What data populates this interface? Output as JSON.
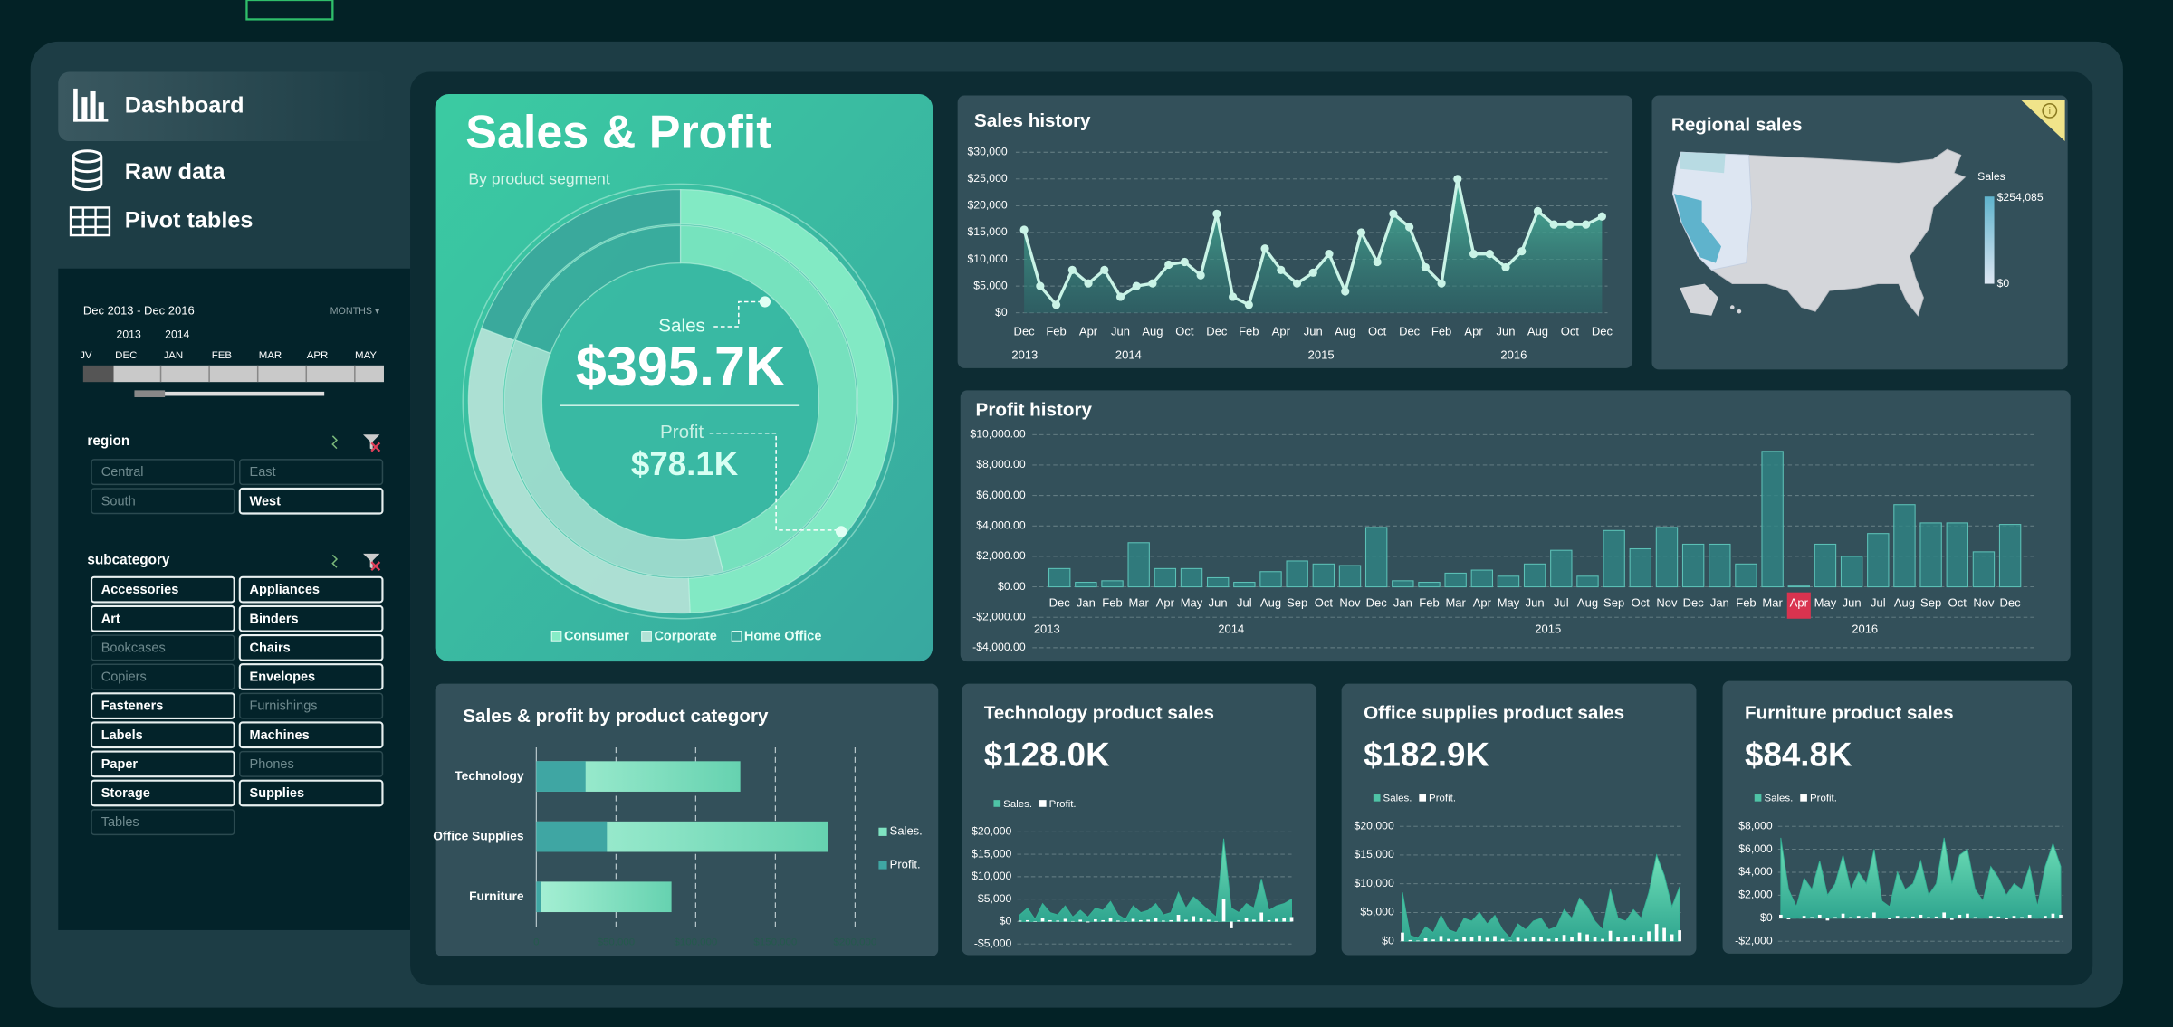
{
  "nav": [
    "Dashboard",
    "Raw data",
    "Pivot tables"
  ],
  "timeline": {
    "range": "Dec 2013 - Dec 2016",
    "unit": "MONTHS ▾",
    "years": [
      "2013",
      "2014"
    ],
    "months": [
      "JV",
      "DEC",
      "JAN",
      "FEB",
      "MAR",
      "APR",
      "MAY"
    ]
  },
  "region": {
    "title": "region",
    "items": [
      {
        "label": "Central",
        "selected": false
      },
      {
        "label": "East",
        "selected": false
      },
      {
        "label": "South",
        "selected": false
      },
      {
        "label": "West",
        "selected": true
      }
    ]
  },
  "subcategory": {
    "title": "subcategory",
    "items": [
      {
        "label": "Accessories",
        "selected": true
      },
      {
        "label": "Appliances",
        "selected": true
      },
      {
        "label": "Art",
        "selected": true
      },
      {
        "label": "Binders",
        "selected": true
      },
      {
        "label": "Bookcases",
        "selected": false
      },
      {
        "label": "Chairs",
        "selected": true
      },
      {
        "label": "Copiers",
        "selected": false
      },
      {
        "label": "Envelopes",
        "selected": true
      },
      {
        "label": "Fasteners",
        "selected": true
      },
      {
        "label": "Furnishings",
        "selected": false
      },
      {
        "label": "Labels",
        "selected": true
      },
      {
        "label": "Machines",
        "selected": true
      },
      {
        "label": "Paper",
        "selected": true
      },
      {
        "label": "Phones",
        "selected": false
      },
      {
        "label": "Storage",
        "selected": true
      },
      {
        "label": "Supplies",
        "selected": true
      },
      {
        "label": "Tables",
        "selected": false
      }
    ]
  },
  "sales_profit": {
    "title": "Sales & Profit",
    "subtitle": "By product segment",
    "chart": {
      "type": "donut",
      "categories": [
        "Consumer",
        "Corporate",
        "Home Office"
      ],
      "colors": [
        "#86ecc6",
        "#b2e2d6",
        "#3aa89c"
      ],
      "series": [
        {
          "name": "Sales",
          "total_label": "$395.7K",
          "values": [
            195000,
            124000,
            76700
          ]
        },
        {
          "name": "Profit",
          "total_label": "$78.1K",
          "values": [
            36000,
            27000,
            15100
          ]
        }
      ]
    }
  },
  "sales_history": {
    "type": "line",
    "title": "Sales history",
    "categories": [
      "Dec",
      null,
      "Feb",
      null,
      "Apr",
      null,
      "Jun",
      null,
      "Aug",
      null,
      "Oct",
      null,
      "Dec",
      null,
      "Feb",
      null,
      "Apr",
      null,
      "Jun",
      null,
      "Aug",
      null,
      "Oct",
      null,
      "Dec",
      null,
      "Feb",
      null,
      "Apr",
      null,
      "Jun",
      null,
      "Aug",
      null,
      "Oct",
      null,
      "Dec"
    ],
    "groups": [
      "2013",
      "2014",
      "2015",
      "2016"
    ],
    "series": [
      {
        "color": "#c9f3e6",
        "values": [
          15500,
          5000,
          1500,
          8000,
          5500,
          8000,
          3000,
          5000,
          5500,
          9000,
          9500,
          7000,
          18500,
          3000,
          1500,
          12000,
          8000,
          5500,
          7500,
          11000,
          4000,
          15000,
          9500,
          18500,
          16000,
          8500,
          5500,
          25000,
          11000,
          11000,
          8500,
          11500,
          19000,
          16500,
          16500,
          16500,
          18000
        ]
      }
    ],
    "ylim": [
      0,
      30000
    ],
    "yticks": [
      {
        "value": 0,
        "label": "$0"
      },
      {
        "value": 5000,
        "label": "$5,000"
      },
      {
        "value": 10000,
        "label": "$10,000"
      },
      {
        "value": 15000,
        "label": "$15,000"
      },
      {
        "value": 20000,
        "label": "$20,000"
      },
      {
        "value": 25000,
        "label": "$25,000"
      },
      {
        "value": 30000,
        "label": "$30,000"
      }
    ],
    "grid": true
  },
  "regional": {
    "title": "Regional sales",
    "legend_title": "Sales",
    "scale": [
      {
        "value": 254085,
        "label": "$254,085"
      },
      {
        "value": 0,
        "label": "$0"
      }
    ],
    "colors": [
      "#5fb3cc",
      "#dde6f2"
    ]
  },
  "profit_history": {
    "type": "bar",
    "title": "Profit history",
    "categories": [
      "Dec",
      "Jan",
      "Feb",
      "Mar",
      "Apr",
      "May",
      "Jun",
      "Jul",
      "Aug",
      "Sep",
      "Oct",
      "Nov",
      "Dec",
      "Jan",
      "Feb",
      "Mar",
      "Apr",
      "May",
      "Jun",
      "Jul",
      "Aug",
      "Sep",
      "Oct",
      "Nov",
      "Dec",
      "Jan",
      "Feb",
      "Mar",
      "Apr",
      "May",
      "Jun",
      "Jul",
      "Aug",
      "Sep",
      "Oct",
      "Nov",
      "Dec"
    ],
    "groups": [
      "2013",
      "2014",
      "2015",
      "2016"
    ],
    "values": [
      1200,
      300,
      400,
      2900,
      1200,
      1200,
      600,
      300,
      1000,
      1700,
      1500,
      1400,
      3900,
      400,
      300,
      900,
      1100,
      700,
      1500,
      2400,
      700,
      3700,
      2500,
      3900,
      2800,
      2800,
      1500,
      8900,
      50,
      2800,
      2000,
      3500,
      5400,
      4200,
      4200,
      2300,
      4100
    ],
    "color": "#2f8585",
    "highlight": 28,
    "highlight_color": "#d9334f",
    "ylim": [
      -4000,
      10000
    ],
    "yticks": [
      {
        "value": -4000,
        "label": "-$4,000.00"
      },
      {
        "value": -2000,
        "label": "-$2,000.00"
      },
      {
        "value": 0,
        "label": "$0.00"
      },
      {
        "value": 2000,
        "label": "$2,000.00"
      },
      {
        "value": 4000,
        "label": "$4,000.00"
      },
      {
        "value": 6000,
        "label": "$6,000.00"
      },
      {
        "value": 8000,
        "label": "$8,000.00"
      },
      {
        "value": 10000,
        "label": "$10,000.00"
      }
    ],
    "grid": true
  },
  "category_chart": {
    "type": "hbar",
    "title": "Sales & profit by product category",
    "categories": [
      "Technology",
      "Office Supplies",
      "Furniture"
    ],
    "series": [
      {
        "name": "Sales.",
        "color": "#7fe3c1",
        "values": [
          128000,
          182900,
          84800
        ]
      },
      {
        "name": "Profit.",
        "color": "#3fa6a3",
        "values": [
          30900,
          44300,
          2900
        ]
      }
    ],
    "xlim": [
      0,
      200000
    ],
    "xticks": [
      0,
      {
        "value": 50000,
        "label": "$50,000"
      },
      {
        "value": 100000,
        "label": "$100,000"
      },
      {
        "value": 150000,
        "label": "$150,000"
      },
      {
        "value": 200000,
        "label": "$200,000"
      }
    ],
    "grid": true
  },
  "product_sales": [
    {
      "type": "area_bar",
      "title": "Technology product sales",
      "total": "$128.0K",
      "series": [
        {
          "name": "Sales.",
          "color": "#34b496",
          "values": [
            1500,
            3000,
            500,
            4000,
            2000,
            1500,
            3500,
            1000,
            2500,
            1000,
            3000,
            2500,
            4500,
            1500,
            500,
            3500,
            2000,
            2500,
            4000,
            1500,
            2000,
            6500,
            3000,
            5500,
            4000,
            2500,
            1000,
            18500,
            3000,
            2000,
            4000,
            3000,
            9500,
            2500,
            3500,
            4000,
            5000
          ]
        },
        {
          "name": "Profit.",
          "color": "#ffffff",
          "values": [
            200,
            300,
            -100,
            800,
            300,
            200,
            600,
            100,
            400,
            -200,
            500,
            300,
            900,
            200,
            100,
            600,
            300,
            400,
            700,
            200,
            300,
            1500,
            400,
            1200,
            800,
            400,
            100,
            5000,
            -1500,
            300,
            900,
            400,
            2000,
            300,
            600,
            800,
            1000
          ]
        }
      ],
      "ylim": [
        -5000,
        20000
      ],
      "yticks": [
        {
          "value": -5000,
          "label": "-$5,000"
        },
        {
          "value": 0,
          "label": "$0"
        },
        {
          "value": 5000,
          "label": "$5,000"
        },
        {
          "value": 10000,
          "label": "$10,000"
        },
        {
          "value": 15000,
          "label": "$15,000"
        },
        {
          "value": 20000,
          "label": "$20,000"
        }
      ],
      "grid": true
    },
    {
      "type": "area_bar",
      "title": "Office supplies product sales",
      "total": "$182.9K",
      "series": [
        {
          "name": "Sales.",
          "color": "#34b496",
          "values": [
            8500,
            1000,
            500,
            2500,
            1500,
            4500,
            2000,
            1500,
            4000,
            3500,
            5000,
            3000,
            4500,
            2000,
            500,
            3000,
            2000,
            3500,
            4000,
            2000,
            2500,
            5500,
            4000,
            7500,
            6000,
            3500,
            2000,
            9000,
            4000,
            3500,
            5500,
            4000,
            8500,
            15000,
            11500,
            6000,
            9500
          ]
        },
        {
          "name": "Profit.",
          "color": "#ffffff",
          "values": [
            1500,
            200,
            100,
            500,
            300,
            900,
            400,
            300,
            800,
            700,
            1000,
            600,
            900,
            400,
            100,
            600,
            400,
            700,
            800,
            400,
            500,
            1100,
            800,
            1500,
            1200,
            700,
            400,
            1800,
            800,
            700,
            1100,
            800,
            1700,
            3000,
            2300,
            1200,
            1900
          ]
        }
      ],
      "ylim": [
        0,
        20000
      ],
      "yticks": [
        {
          "value": 0,
          "label": "$0"
        },
        {
          "value": 5000,
          "label": "$5,000"
        },
        {
          "value": 10000,
          "label": "$10,000"
        },
        {
          "value": 15000,
          "label": "$15,000"
        },
        {
          "value": 20000,
          "label": "$20,000"
        }
      ],
      "grid": true
    },
    {
      "type": "area_bar",
      "title": "Furniture product sales",
      "total": "$84.8K",
      "series": [
        {
          "name": "Sales.",
          "color": "#34b496",
          "values": [
            7000,
            2500,
            1000,
            3500,
            2500,
            5000,
            2000,
            3000,
            5500,
            2500,
            4000,
            3000,
            6000,
            1500,
            1000,
            4000,
            2500,
            3000,
            5000,
            2000,
            3000,
            7000,
            3000,
            5500,
            6000,
            2500,
            1500,
            4500,
            3500,
            2000,
            3000,
            2500,
            4500,
            1000,
            4500,
            6500,
            4500
          ]
        },
        {
          "name": "Profit.",
          "color": "#ffffff",
          "values": [
            300,
            -100,
            50,
            200,
            100,
            300,
            -200,
            100,
            400,
            100,
            200,
            100,
            500,
            50,
            -100,
            200,
            100,
            150,
            300,
            100,
            150,
            500,
            -150,
            300,
            400,
            100,
            50,
            200,
            150,
            -100,
            200,
            100,
            300,
            50,
            200,
            400,
            300
          ]
        }
      ],
      "ylim": [
        -2000,
        8000
      ],
      "yticks": [
        {
          "value": -2000,
          "label": "-$2,000"
        },
        {
          "value": 0,
          "label": "$0"
        },
        {
          "value": 2000,
          "label": "$2,000"
        },
        {
          "value": 4000,
          "label": "$4,000"
        },
        {
          "value": 6000,
          "label": "$6,000"
        },
        {
          "value": 8000,
          "label": "$8,000"
        }
      ],
      "grid": true
    }
  ]
}
